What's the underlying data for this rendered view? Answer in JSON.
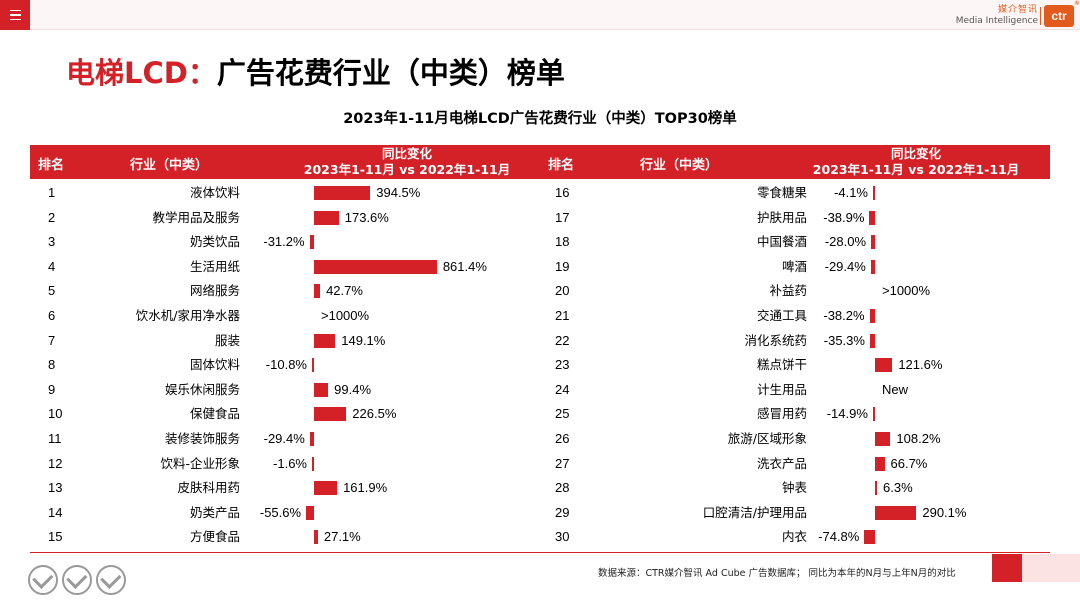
{
  "header": {
    "logo_cn": "媒介智讯",
    "logo_en": "Media Intelligence",
    "logo_mark": "ctr"
  },
  "title": {
    "prefix": "电梯LCD：",
    "rest": "广告花费行业（中类）榜单"
  },
  "chart_data": {
    "type": "bar",
    "title": "2023年1-11月电梯LCD广告花费行业（中类）TOP30榜单",
    "columns": {
      "rank": "排名",
      "industry": "行业（中类）",
      "change_line1": "同比变化",
      "change_line2": "2023年1-11月 vs 2022年1-11月"
    },
    "unit": "%",
    "rows": [
      {
        "rank": "1",
        "industry": "液体饮料",
        "value": 394.5,
        "label": "394.5%"
      },
      {
        "rank": "2",
        "industry": "教学用品及服务",
        "value": 173.6,
        "label": "173.6%"
      },
      {
        "rank": "3",
        "industry": "奶类饮品",
        "value": -31.2,
        "label": "-31.2%"
      },
      {
        "rank": "4",
        "industry": "生活用纸",
        "value": 861.4,
        "label": "861.4%"
      },
      {
        "rank": "5",
        "industry": "网络服务",
        "value": 42.7,
        "label": "42.7%"
      },
      {
        "rank": "6",
        "industry": "饮水机/家用净水器",
        "value": null,
        "label": ">1000%"
      },
      {
        "rank": "7",
        "industry": "服装",
        "value": 149.1,
        "label": "149.1%"
      },
      {
        "rank": "8",
        "industry": "固体饮料",
        "value": -10.8,
        "label": "-10.8%"
      },
      {
        "rank": "9",
        "industry": "娱乐休闲服务",
        "value": 99.4,
        "label": "99.4%"
      },
      {
        "rank": "10",
        "industry": "保健食品",
        "value": 226.5,
        "label": "226.5%"
      },
      {
        "rank": "11",
        "industry": "装修装饰服务",
        "value": -29.4,
        "label": "-29.4%"
      },
      {
        "rank": "12",
        "industry": "饮料-企业形象",
        "value": -1.6,
        "label": "-1.6%"
      },
      {
        "rank": "13",
        "industry": "皮肤科用药",
        "value": 161.9,
        "label": "161.9%"
      },
      {
        "rank": "14",
        "industry": "奶类产品",
        "value": -55.6,
        "label": "-55.6%"
      },
      {
        "rank": "15",
        "industry": "方便食品",
        "value": 27.1,
        "label": "27.1%"
      },
      {
        "rank": "16",
        "industry": "零食糖果",
        "value": -4.1,
        "label": "-4.1%"
      },
      {
        "rank": "17",
        "industry": "护肤用品",
        "value": -38.9,
        "label": "-38.9%"
      },
      {
        "rank": "18",
        "industry": "中国餐酒",
        "value": -28.0,
        "label": "-28.0%"
      },
      {
        "rank": "19",
        "industry": "啤酒",
        "value": -29.4,
        "label": "-29.4%"
      },
      {
        "rank": "20",
        "industry": "补益药",
        "value": null,
        "label": ">1000%"
      },
      {
        "rank": "21",
        "industry": "交通工具",
        "value": -38.2,
        "label": "-38.2%"
      },
      {
        "rank": "22",
        "industry": "消化系统药",
        "value": -35.3,
        "label": "-35.3%"
      },
      {
        "rank": "23",
        "industry": "糕点饼干",
        "value": 121.6,
        "label": "121.6%"
      },
      {
        "rank": "24",
        "industry": "计生用品",
        "value": null,
        "label": "New"
      },
      {
        "rank": "25",
        "industry": "感冒用药",
        "value": -14.9,
        "label": "-14.9%"
      },
      {
        "rank": "26",
        "industry": "旅游/区域形象",
        "value": 108.2,
        "label": "108.2%"
      },
      {
        "rank": "27",
        "industry": "洗衣产品",
        "value": 66.7,
        "label": "66.7%"
      },
      {
        "rank": "28",
        "industry": "钟表",
        "value": 6.3,
        "label": "6.3%"
      },
      {
        "rank": "29",
        "industry": "口腔清洁/护理用品",
        "value": 290.1,
        "label": "290.1%"
      },
      {
        "rank": "30",
        "industry": "内衣",
        "value": -74.8,
        "label": "-74.8%"
      }
    ]
  },
  "footer": {
    "source": "数据来源：CTR媒介智讯 Ad Cube 广告数据库； 同比为本年的N月与上年N月的对比"
  },
  "colors": {
    "accent": "#d42128",
    "logo": "#e25b1d"
  }
}
